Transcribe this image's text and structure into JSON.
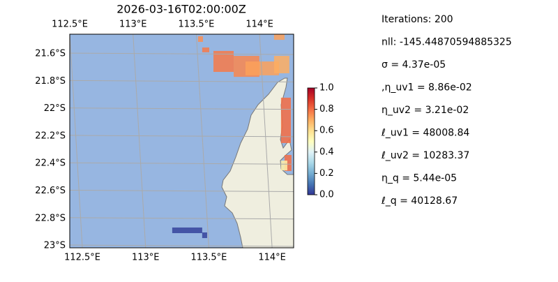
{
  "chart_data": {
    "type": "map",
    "title": "2026-03-16T02:00:00Z",
    "xlim": [
      112.45,
      114.22
    ],
    "ylim": [
      -23.015,
      -21.457
    ],
    "xticks": [
      {
        "value": 112.5,
        "label": "112.5°E"
      },
      {
        "value": 113,
        "label": "113°E"
      },
      {
        "value": 113.5,
        "label": "113.5°E"
      },
      {
        "value": 114,
        "label": "114°E"
      }
    ],
    "yticks": [
      {
        "value": -21.6,
        "label": "21.6°S"
      },
      {
        "value": -21.8,
        "label": "21.8°S"
      },
      {
        "value": -22,
        "label": "22°S"
      },
      {
        "value": -22.2,
        "label": "22.2°S"
      },
      {
        "value": -22.4,
        "label": "22.4°S"
      },
      {
        "value": -22.6,
        "label": "22.6°S"
      },
      {
        "value": -22.8,
        "label": "22.8°S"
      },
      {
        "value": -23,
        "label": "23°S"
      }
    ],
    "grid": true,
    "colormap": "RdYlBu_r",
    "clim": [
      0,
      1
    ],
    "cticks": [
      {
        "value": 0,
        "label": "0.0"
      },
      {
        "value": 0.2,
        "label": "0.2"
      },
      {
        "value": 0.4,
        "label": "0.4"
      },
      {
        "value": 0.6,
        "label": "0.6"
      },
      {
        "value": 0.8,
        "label": "0.8"
      },
      {
        "value": 1,
        "label": "1.0"
      }
    ],
    "cells": [
      {
        "lon": [
          113.464,
          113.503
        ],
        "lat": [
          -21.472,
          -21.513
        ],
        "value": 0.75
      },
      {
        "lon": [
          113.497,
          113.553
        ],
        "lat": [
          -21.554,
          -21.589
        ],
        "value": 0.78
      },
      {
        "lon": [
          113.586,
          113.746
        ],
        "lat": [
          -21.579,
          -21.732
        ],
        "value": 0.78
      },
      {
        "lon": [
          113.746,
          113.949
        ],
        "lat": [
          -21.615,
          -21.768
        ],
        "value": 0.76
      },
      {
        "lon": [
          113.839,
          114.104
        ],
        "lat": [
          -21.656,
          -21.757
        ],
        "value": 0.72
      },
      {
        "lon": [
          114.065,
          114.186
        ],
        "lat": [
          -21.615,
          -21.742
        ],
        "value": 0.7
      },
      {
        "lon": [
          114.065,
          114.148
        ],
        "lat": [
          -21.457,
          -21.498
        ],
        "value": 0.72
      },
      {
        "lon": [
          114.12,
          114.198
        ],
        "lat": [
          -21.92,
          -22.251
        ],
        "value": 0.8
      },
      {
        "lon": [
          114.148,
          114.203
        ],
        "lat": [
          -22.338,
          -22.455
        ],
        "value": 0.8
      },
      {
        "lon": [
          114.12,
          114.17
        ],
        "lat": [
          -22.379,
          -22.45
        ],
        "value": 0.55
      },
      {
        "lon": [
          113.26,
          113.497
        ],
        "lat": [
          -22.867,
          -22.908
        ],
        "value": 0.02
      },
      {
        "lon": [
          113.497,
          113.536
        ],
        "lat": [
          -22.903,
          -22.944
        ],
        "value": 0.02
      }
    ],
    "info": [
      "Iterations: 200",
      "nll: -145.44870594885325",
      "σ = 4.37e-05",
      ",η_uv1 = 8.86e-02",
      "η_uv2 = 3.21e-02",
      "ℓ_uv1 = 48008.84",
      "ℓ_uv2 = 10283.37",
      "η_q = 5.44e-05",
      "ℓ_q = 40128.67"
    ]
  }
}
